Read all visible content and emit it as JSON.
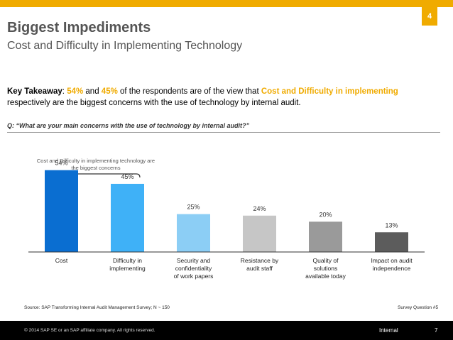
{
  "page_badge": "4",
  "header": {
    "title": "Biggest Impediments",
    "subtitle": "Cost and Difficulty in Implementing Technology"
  },
  "takeaway": {
    "lead": "Key Takeaway",
    "colon": ": ",
    "pct1": "54%",
    "and": " and ",
    "pct2": "45%",
    "mid": " of the respondents are of the view that ",
    "highlight": "Cost and Difficulty in implementing",
    "end": " respectively are the biggest concerns with the use of technology by internal audit."
  },
  "question": "Q: “What are your main concerns with the use of technology by internal audit?”",
  "annotation": "Cost and Difficulty in implementing technology are the biggest concerns",
  "chart_data": {
    "type": "bar",
    "categories": [
      "Cost",
      "Difficulty in implementing",
      "Security and confidentiality of work papers",
      "Resistance by audit staff",
      "Quality of solutions available today",
      "Impact on audit independence"
    ],
    "values": [
      54,
      45,
      25,
      24,
      20,
      13
    ],
    "value_labels": [
      "54%",
      "45%",
      "25%",
      "24%",
      "20%",
      "13%"
    ],
    "colors": [
      "#0a6ed1",
      "#3fb1f7",
      "#8ccef5",
      "#c6c6c6",
      "#9a9a9a",
      "#5c5c5c"
    ],
    "ylim": [
      0,
      60
    ],
    "title": "",
    "xlabel": "",
    "ylabel": ""
  },
  "footnotes": {
    "source": "Source: SAP Transforming Internal Audit Management Survey; N ~ 150",
    "survey_ref": "Survey Question #5"
  },
  "footer": {
    "copyright": "© 2014 SAP SE or an SAP affiliate company. All rights reserved.",
    "classification": "Internal",
    "page_number": "7"
  }
}
